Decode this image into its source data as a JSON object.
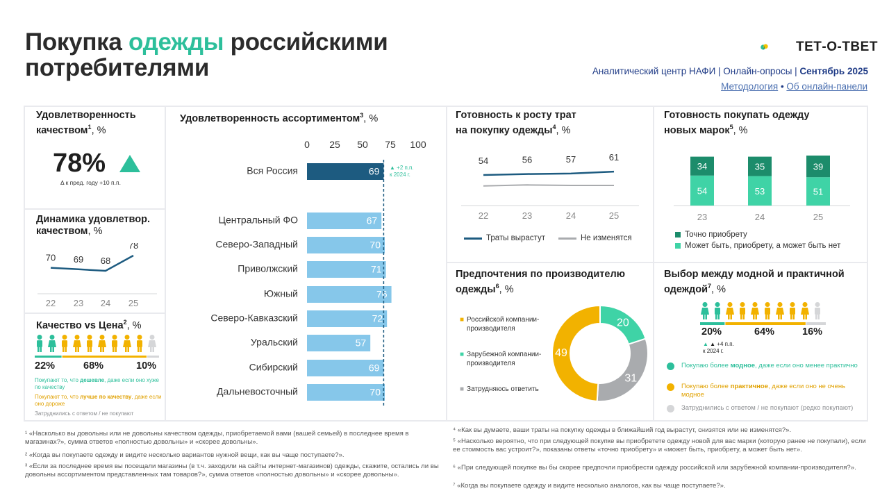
{
  "header": {
    "title_part1": "Покупка ",
    "title_accent": "одежды",
    "title_part2": " российскими",
    "title_line2": "потребителями",
    "logo_text": "ТЕТ-О-ТВЕТ",
    "subtitle_main": "Аналитический центр НАФИ | Онлайн-опросы | ",
    "subtitle_date": "Сентябрь 2025",
    "link_methodology": "Методология",
    "link_sep": " • ",
    "link_panel": "Об онлайн-панели"
  },
  "colors": {
    "accent_green": "#2dbf9b",
    "dark_blue": "#1d5b80",
    "light_blue": "#86c7ea",
    "yellow": "#f2b200",
    "gray": "#a9abae",
    "dark_green": "#1c8c6b",
    "light_green": "#3fd3a6"
  },
  "satisfaction_quality": {
    "title": "Удовлетворенность качеством",
    "sup": "1",
    "unit": ", %",
    "value": "78%",
    "delta_text": "Δ к пред. году  +10 п.п."
  },
  "dynamics": {
    "title_line1": "Динамика удовлетвор.",
    "title_line2": "качеством",
    "unit": ", %",
    "chart_data": {
      "type": "line",
      "x": [
        "22",
        "23",
        "24",
        "25"
      ],
      "series": [
        {
          "values": [
            70,
            69,
            68,
            78
          ]
        }
      ]
    }
  },
  "quality_vs_price": {
    "title": "Качество vs Цена",
    "sup": "2",
    "unit": ", %",
    "values": [
      "22%",
      "68%",
      "10%"
    ],
    "chart_data": {
      "type": "bar",
      "categories": [
        "Покупают то, что дешевле, даже если оно хуже по качеству",
        "Покупают то, что лучше по качеству, даже если оно дороже",
        "Затруднились с ответом / не покупают"
      ],
      "values": [
        22,
        68,
        10
      ]
    },
    "legend": [
      {
        "before": "Покупают то, что ",
        "bold": "дешевле",
        "after": ", даже если оно хуже по качеству"
      },
      {
        "before": "Покупают то, что ",
        "bold": "лучше по качеству",
        "after": ", даже если оно дороже"
      },
      {
        "before": "Затруднились с ответом / не покупают",
        "bold": "",
        "after": ""
      }
    ]
  },
  "assortment": {
    "title": "Удовлетворенность ассортиментом",
    "sup": "3",
    "unit": ", %",
    "delta_line1": "▲ +2 п.п.",
    "delta_line2": "к 2024 г.",
    "chart_data": {
      "type": "bar",
      "orientation": "horizontal",
      "xticks": [
        0,
        25,
        50,
        75,
        100
      ],
      "xlim": [
        0,
        100
      ],
      "reference_line": 69,
      "categories": [
        "Вся Россия",
        "Центральный ФО",
        "Северо-Западный",
        "Приволжский",
        "Южный",
        "Северо-Кавказский",
        "Уральский",
        "Сибирский",
        "Дальневосточный"
      ],
      "values": [
        69,
        67,
        70,
        71,
        76,
        72,
        57,
        69,
        70
      ]
    }
  },
  "spending": {
    "title_line1": "Готовность к росту трат",
    "title_line2": "на покупку одежды",
    "sup": "4",
    "unit": ", %",
    "chart_data": {
      "type": "line",
      "x": [
        "22",
        "23",
        "24",
        "25"
      ],
      "series": [
        {
          "name": "Траты вырастут",
          "values": [
            54,
            56,
            57,
            61
          ]
        },
        {
          "name": "Не изменятся",
          "values": [
            28,
            26,
            27,
            27
          ]
        }
      ]
    }
  },
  "new_brands": {
    "title_line1": "Готовность покупать одежду",
    "title_line2": "новых марок",
    "sup": "5",
    "unit": ", %",
    "chart_data": {
      "type": "bar",
      "stacked": true,
      "categories": [
        "23",
        "24",
        "25"
      ],
      "series": [
        {
          "name": "Может быть, приобрету, а может быть нет",
          "values": [
            54,
            53,
            51
          ]
        },
        {
          "name": "Точно приобрету",
          "values": [
            34,
            35,
            39
          ]
        }
      ]
    }
  },
  "manufacturer": {
    "title_line1": "Предпочтения по производителю",
    "title_line2": "одежды",
    "sup": "6",
    "unit": ", %",
    "chart_data": {
      "type": "pie",
      "donut": true,
      "categories": [
        "Российской компании-производителя",
        "Зарубежной компании-производителя",
        "Затрудняюсь ответить"
      ],
      "values": [
        49,
        20,
        31
      ]
    }
  },
  "fashion_vs_practical": {
    "title_line1": "Выбор между модной и практичной",
    "title_line2": "одеждой",
    "sup": "7",
    "unit": ", %",
    "values": [
      "20%",
      "64%",
      "16%"
    ],
    "delta_line1": "▲ +4 п.п.",
    "delta_line2": "к 2024 г.",
    "chart_data": {
      "type": "bar",
      "categories": [
        "Покупаю более модное, даже если оно менее практично",
        "Покупаю более практичное, даже если оно не очень модное",
        "Затруднились с ответом / не покупают (редко покупают)"
      ],
      "values": [
        20,
        64,
        16
      ]
    },
    "legend": [
      {
        "before": "Покупаю более ",
        "bold": "модное",
        "after": ", даже если оно менее практично"
      },
      {
        "before": "Покупаю более ",
        "bold": "практичное",
        "after": ", даже если оно не очень модное"
      },
      {
        "before": "Затруднились с ответом / не покупают (редко покупают)",
        "bold": "",
        "after": ""
      }
    ]
  },
  "footnotes": {
    "f1": "¹ «Насколько вы довольны или не довольны качеством одежды, приобретаемой вами (вашей семьей) в последнее время в магазинах?», сумма ответов «полностью довольны» и «скорее довольны».",
    "f2": "² «Когда вы покупаете одежду и видите несколько вариантов нужной вещи, как вы чаще поступаете?».",
    "f3": "³ «Если за последнее время вы посещали магазины (в т.ч. заходили на сайты интернет-магазинов) одежды, скажите, остались ли вы довольны ассортиментом представленных там товаров?», сумма ответов «полностью довольны» и «скорее довольны».",
    "f4": "⁴ «Как вы думаете, ваши траты на покупку одежды в ближайший год вырастут, снизятся или не изменятся?».",
    "f5": "⁵ «Насколько вероятно, что при следующей покупке вы приобретете одежду новой для вас марки (которую ранее не покупали), если ее стоимость вас устроит?», показаны ответы «точно приобрету» и «может быть, приобрету, а может быть нет».",
    "f6": "⁶ «При следующей покупке вы бы скорее предпочли приобрести одежду российской или зарубежной компании-производителя?».",
    "f7": "⁷ «Когда вы покупаете одежду и видите несколько аналогов, как вы чаще поступаете?»."
  }
}
